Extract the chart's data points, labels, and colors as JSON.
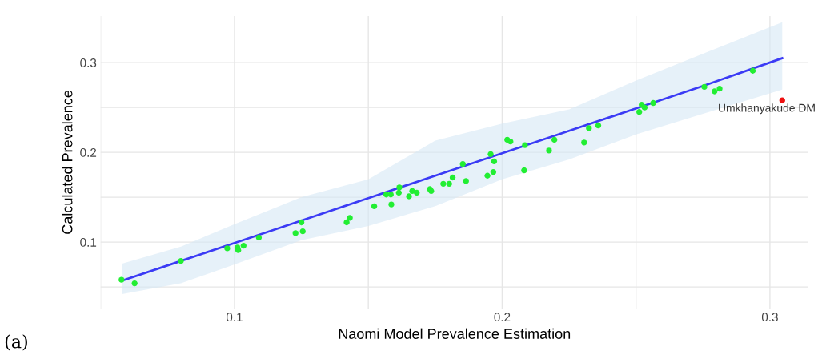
{
  "chart_data": {
    "type": "scatter",
    "xlabel": "Naomi Model Prevalence Estimation",
    "ylabel": "Calculated Prevalence",
    "xlim": [
      0.05,
      0.3143
    ],
    "ylim": [
      0.026,
      0.352
    ],
    "xticks": [
      {
        "value": 0.05,
        "label": null
      },
      0.1,
      {
        "value": 0.15,
        "label": null
      },
      0.2,
      {
        "value": 0.25,
        "label": null
      },
      0.3
    ],
    "yticks": [
      {
        "value": 0.05,
        "label": null
      },
      0.1,
      {
        "value": 0.15,
        "label": null
      },
      0.2,
      {
        "value": 0.25,
        "label": null
      },
      0.3
    ],
    "grid": true,
    "legend": false,
    "series": [
      {
        "type": "line",
        "marker": "none",
        "color": "#3b3bf5",
        "x": [
          0.058,
          0.08,
          0.1,
          0.125,
          0.15,
          0.175,
          0.2,
          0.225,
          0.25,
          0.275,
          0.3046
        ],
        "values": [
          0.057,
          0.079,
          0.099,
          0.124,
          0.149,
          0.174,
          0.199,
          0.224,
          0.249,
          0.274,
          0.305
        ],
        "lower": [
          0.042,
          0.054,
          0.075,
          0.102,
          0.118,
          0.14,
          0.17,
          0.192,
          0.22,
          0.243,
          0.27
        ],
        "upper": [
          0.076,
          0.095,
          0.12,
          0.15,
          0.17,
          0.213,
          0.232,
          0.248,
          0.28,
          0.31,
          0.345
        ]
      },
      {
        "marker": "circle",
        "color": "#22ee33",
        "x": [
          0.0578,
          0.0627,
          0.08,
          0.0973,
          0.1011,
          0.1014,
          0.1034,
          0.1091,
          0.1228,
          0.1255,
          0.125,
          0.1419,
          0.1431,
          0.1522,
          0.1586,
          0.1567,
          0.1584,
          0.1614,
          0.1616,
          0.1652,
          0.1664,
          0.1681,
          0.173,
          0.1735,
          0.178,
          0.1802,
          0.1815,
          0.1865,
          0.1853,
          0.1945,
          0.1967,
          0.197,
          0.1957,
          0.2019,
          0.2031,
          0.2082,
          0.2085,
          0.2175,
          0.2195,
          0.2306,
          0.2324,
          0.2359,
          0.2512,
          0.2521,
          0.2532,
          0.2564,
          0.2755,
          0.2793,
          0.2812,
          0.2936
        ],
        "values": [
          0.058,
          0.054,
          0.079,
          0.093,
          0.094,
          0.091,
          0.096,
          0.105,
          0.11,
          0.112,
          0.122,
          0.122,
          0.127,
          0.14,
          0.142,
          0.153,
          0.153,
          0.155,
          0.161,
          0.151,
          0.157,
          0.155,
          0.159,
          0.157,
          0.165,
          0.165,
          0.172,
          0.168,
          0.187,
          0.174,
          0.178,
          0.19,
          0.198,
          0.214,
          0.212,
          0.18,
          0.208,
          0.202,
          0.214,
          0.211,
          0.227,
          0.23,
          0.245,
          0.253,
          0.25,
          0.255,
          0.273,
          0.268,
          0.271,
          0.291
        ]
      },
      {
        "marker": "circle",
        "color": "#ee1111",
        "x": [
          0.3046
        ],
        "values": [
          0.258
        ]
      }
    ],
    "annotations": [
      {
        "text": "Umkhanyakude DM",
        "x": 0.3046,
        "y": 0.258
      },
      "(a)"
    ]
  }
}
